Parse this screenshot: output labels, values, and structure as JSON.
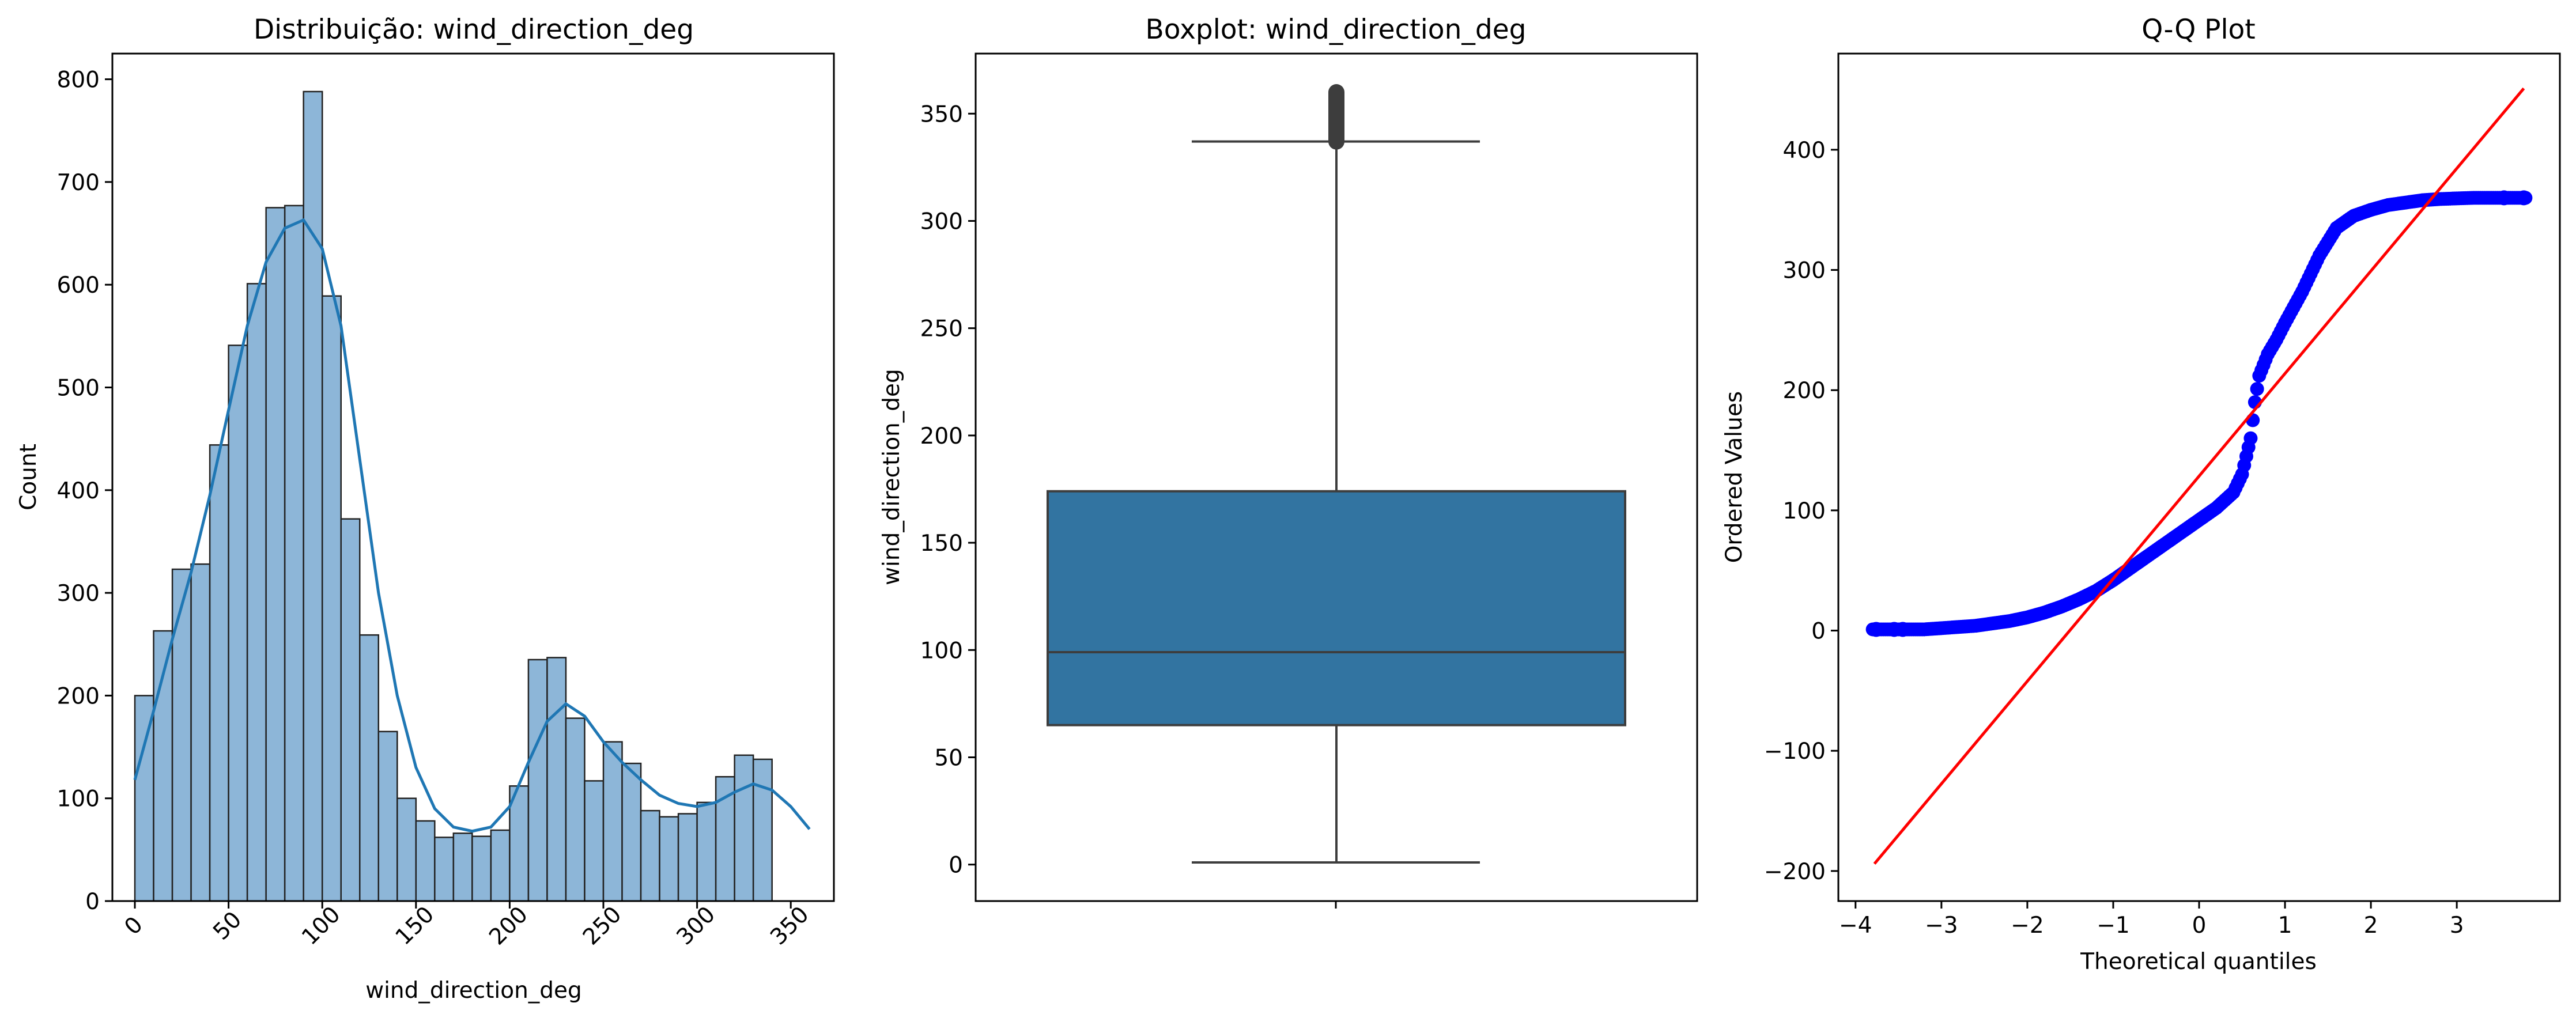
{
  "chart_data": [
    {
      "type": "histogram",
      "title": "Distribuição: wind_direction_deg",
      "xlabel": "wind_direction_deg",
      "ylabel": "Count",
      "xlim": [
        -12,
        373
      ],
      "ylim": [
        0,
        825
      ],
      "xticks": [
        0,
        50,
        100,
        150,
        200,
        250,
        300,
        350
      ],
      "yticks": [
        0,
        100,
        200,
        300,
        400,
        500,
        600,
        700,
        800
      ],
      "bin_width": 10,
      "bins": [
        {
          "x0": 0,
          "count": 200
        },
        {
          "x0": 10,
          "count": 263
        },
        {
          "x0": 20,
          "count": 323
        },
        {
          "x0": 30,
          "count": 328
        },
        {
          "x0": 40,
          "count": 444
        },
        {
          "x0": 50,
          "count": 541
        },
        {
          "x0": 60,
          "count": 601
        },
        {
          "x0": 70,
          "count": 675
        },
        {
          "x0": 80,
          "count": 677
        },
        {
          "x0": 90,
          "count": 788
        },
        {
          "x0": 100,
          "count": 589
        },
        {
          "x0": 110,
          "count": 372
        },
        {
          "x0": 120,
          "count": 259
        },
        {
          "x0": 130,
          "count": 165
        },
        {
          "x0": 140,
          "count": 100
        },
        {
          "x0": 150,
          "count": 78
        },
        {
          "x0": 160,
          "count": 62
        },
        {
          "x0": 170,
          "count": 66
        },
        {
          "x0": 180,
          "count": 63
        },
        {
          "x0": 190,
          "count": 69
        },
        {
          "x0": 200,
          "count": 112
        },
        {
          "x0": 210,
          "count": 235
        },
        {
          "x0": 220,
          "count": 237
        },
        {
          "x0": 230,
          "count": 178
        },
        {
          "x0": 240,
          "count": 117
        },
        {
          "x0": 250,
          "count": 155
        },
        {
          "x0": 260,
          "count": 134
        },
        {
          "x0": 270,
          "count": 88
        },
        {
          "x0": 280,
          "count": 82
        },
        {
          "x0": 290,
          "count": 85
        },
        {
          "x0": 300,
          "count": 96
        },
        {
          "x0": 310,
          "count": 121
        },
        {
          "x0": 320,
          "count": 142
        },
        {
          "x0": 330,
          "count": 138
        }
      ],
      "kde": [
        [
          0,
          118
        ],
        [
          10,
          185
        ],
        [
          20,
          255
        ],
        [
          30,
          320
        ],
        [
          40,
          395
        ],
        [
          50,
          478
        ],
        [
          60,
          560
        ],
        [
          70,
          622
        ],
        [
          80,
          655
        ],
        [
          90,
          663
        ],
        [
          100,
          635
        ],
        [
          110,
          560
        ],
        [
          120,
          430
        ],
        [
          130,
          300
        ],
        [
          140,
          200
        ],
        [
          150,
          130
        ],
        [
          160,
          90
        ],
        [
          170,
          72
        ],
        [
          180,
          68
        ],
        [
          190,
          72
        ],
        [
          200,
          92
        ],
        [
          210,
          135
        ],
        [
          220,
          175
        ],
        [
          230,
          192
        ],
        [
          240,
          180
        ],
        [
          250,
          155
        ],
        [
          260,
          135
        ],
        [
          270,
          118
        ],
        [
          280,
          103
        ],
        [
          290,
          95
        ],
        [
          300,
          92
        ],
        [
          310,
          96
        ],
        [
          320,
          106
        ],
        [
          330,
          114
        ],
        [
          340,
          108
        ],
        [
          350,
          92
        ],
        [
          360,
          70
        ]
      ],
      "colors": {
        "bar_fill": "#8db6d8",
        "bar_edge": "#222222",
        "kde_line": "#1f77b4"
      }
    },
    {
      "type": "boxplot",
      "title": "Boxplot: wind_direction_deg",
      "ylabel": "wind_direction_deg",
      "ylim": [
        -17,
        378
      ],
      "yticks": [
        0,
        50,
        100,
        150,
        200,
        250,
        300,
        350
      ],
      "whisker_low": 1,
      "q1": 65,
      "median": 99,
      "q3": 174,
      "whisker_high": 337,
      "outlier_range": [
        337,
        360
      ],
      "colors": {
        "box_fill": "#3274a1",
        "line": "#3d3d3d"
      }
    },
    {
      "type": "scatter",
      "title": "Q-Q Plot",
      "xlabel": "Theoretical quantiles",
      "ylabel": "Ordered Values",
      "xlim": [
        -4.2,
        4.2
      ],
      "ylim": [
        -225,
        480
      ],
      "xticks": [
        -4,
        -3,
        -2,
        -1,
        0,
        1,
        2,
        3
      ],
      "yticks": [
        -200,
        -100,
        0,
        100,
        200,
        300,
        400
      ],
      "points": [
        [
          -3.8,
          1
        ],
        [
          -3.6,
          1
        ],
        [
          -3.4,
          1
        ],
        [
          -3.2,
          1
        ],
        [
          -3.0,
          2
        ],
        [
          -2.8,
          3
        ],
        [
          -2.6,
          4
        ],
        [
          -2.4,
          6
        ],
        [
          -2.2,
          8
        ],
        [
          -2.0,
          11
        ],
        [
          -1.8,
          15
        ],
        [
          -1.6,
          20
        ],
        [
          -1.4,
          26
        ],
        [
          -1.2,
          33
        ],
        [
          -1.0,
          42
        ],
        [
          -0.8,
          52
        ],
        [
          -0.6,
          62
        ],
        [
          -0.4,
          72
        ],
        [
          -0.2,
          82
        ],
        [
          0.0,
          92
        ],
        [
          0.2,
          102
        ],
        [
          0.4,
          115
        ],
        [
          0.5,
          130
        ],
        [
          0.6,
          160
        ],
        [
          0.65,
          190
        ],
        [
          0.7,
          212
        ],
        [
          0.8,
          230
        ],
        [
          0.9,
          242
        ],
        [
          1.0,
          256
        ],
        [
          1.2,
          282
        ],
        [
          1.4,
          312
        ],
        [
          1.6,
          335
        ],
        [
          1.8,
          345
        ],
        [
          2.0,
          350
        ],
        [
          2.2,
          354
        ],
        [
          2.4,
          356
        ],
        [
          2.6,
          358
        ],
        [
          2.8,
          359
        ],
        [
          3.0,
          359.5
        ],
        [
          3.2,
          360
        ],
        [
          3.4,
          360
        ],
        [
          3.6,
          360
        ],
        [
          3.8,
          360
        ]
      ],
      "fit_line": [
        [
          -3.78,
          -194
        ],
        [
          3.78,
          451
        ]
      ],
      "colors": {
        "points": "#0000ff",
        "fit_line": "#ff0000"
      }
    }
  ]
}
